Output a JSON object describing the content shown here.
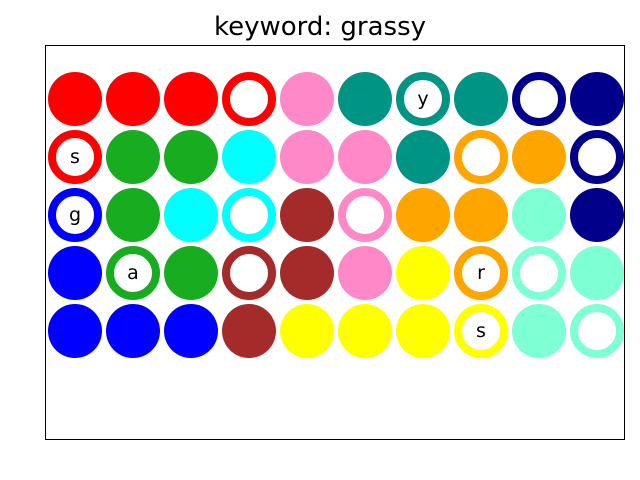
{
  "title": "keyword: grassy",
  "colors": {
    "red": "#ff0000",
    "pink": "#ff88c8",
    "teal": "#009485",
    "navy": "#00008b",
    "green": "#18ac20",
    "cyan": "#00ffff",
    "orange": "#ffa500",
    "brown": "#a52a2a",
    "mint": "#7fffd4",
    "blue": "#0000ff",
    "yellow": "#ffff00"
  },
  "grid": [
    [
      {
        "color": "red",
        "style": "filled",
        "letter": ""
      },
      {
        "color": "red",
        "style": "filled",
        "letter": ""
      },
      {
        "color": "red",
        "style": "filled",
        "letter": ""
      },
      {
        "color": "red",
        "style": "ring",
        "letter": ""
      },
      {
        "color": "pink",
        "style": "filled",
        "letter": ""
      },
      {
        "color": "teal",
        "style": "filled",
        "letter": ""
      },
      {
        "color": "teal",
        "style": "ring",
        "letter": "y"
      },
      {
        "color": "teal",
        "style": "filled",
        "letter": ""
      },
      {
        "color": "navy",
        "style": "ring",
        "letter": ""
      },
      {
        "color": "navy",
        "style": "filled",
        "letter": ""
      }
    ],
    [
      {
        "color": "red",
        "style": "ring",
        "letter": "s"
      },
      {
        "color": "green",
        "style": "filled",
        "letter": ""
      },
      {
        "color": "green",
        "style": "filled",
        "letter": ""
      },
      {
        "color": "cyan",
        "style": "filled",
        "letter": ""
      },
      {
        "color": "pink",
        "style": "filled",
        "letter": ""
      },
      {
        "color": "pink",
        "style": "filled",
        "letter": ""
      },
      {
        "color": "teal",
        "style": "filled",
        "letter": ""
      },
      {
        "color": "orange",
        "style": "ring",
        "letter": ""
      },
      {
        "color": "orange",
        "style": "filled",
        "letter": ""
      },
      {
        "color": "navy",
        "style": "ring",
        "letter": ""
      }
    ],
    [
      {
        "color": "blue",
        "style": "ring",
        "letter": "g"
      },
      {
        "color": "green",
        "style": "filled",
        "letter": ""
      },
      {
        "color": "cyan",
        "style": "filled",
        "letter": ""
      },
      {
        "color": "cyan",
        "style": "ring",
        "letter": ""
      },
      {
        "color": "brown",
        "style": "filled",
        "letter": ""
      },
      {
        "color": "pink",
        "style": "ring",
        "letter": ""
      },
      {
        "color": "orange",
        "style": "filled",
        "letter": ""
      },
      {
        "color": "orange",
        "style": "filled",
        "letter": ""
      },
      {
        "color": "mint",
        "style": "filled",
        "letter": ""
      },
      {
        "color": "navy",
        "style": "filled",
        "letter": ""
      }
    ],
    [
      {
        "color": "blue",
        "style": "filled",
        "letter": ""
      },
      {
        "color": "green",
        "style": "ring",
        "letter": "a"
      },
      {
        "color": "green",
        "style": "filled",
        "letter": ""
      },
      {
        "color": "brown",
        "style": "ring",
        "letter": ""
      },
      {
        "color": "brown",
        "style": "filled",
        "letter": ""
      },
      {
        "color": "pink",
        "style": "filled",
        "letter": ""
      },
      {
        "color": "yellow",
        "style": "filled",
        "letter": ""
      },
      {
        "color": "orange",
        "style": "ring",
        "letter": "r"
      },
      {
        "color": "mint",
        "style": "ring",
        "letter": ""
      },
      {
        "color": "mint",
        "style": "filled",
        "letter": ""
      }
    ],
    [
      {
        "color": "blue",
        "style": "filled",
        "letter": ""
      },
      {
        "color": "blue",
        "style": "filled",
        "letter": ""
      },
      {
        "color": "blue",
        "style": "filled",
        "letter": ""
      },
      {
        "color": "brown",
        "style": "filled",
        "letter": ""
      },
      {
        "color": "yellow",
        "style": "filled",
        "letter": ""
      },
      {
        "color": "yellow",
        "style": "filled",
        "letter": ""
      },
      {
        "color": "yellow",
        "style": "filled",
        "letter": ""
      },
      {
        "color": "yellow",
        "style": "ring",
        "letter": "s"
      },
      {
        "color": "mint",
        "style": "filled",
        "letter": ""
      },
      {
        "color": "mint",
        "style": "ring",
        "letter": ""
      }
    ]
  ]
}
